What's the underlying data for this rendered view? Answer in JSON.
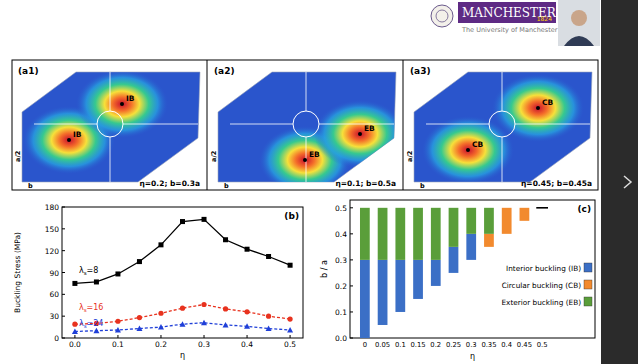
{
  "header": {
    "logo": "MANCHESTER",
    "logo_year": "1824",
    "subtitle": "The University of Manchester"
  },
  "panels": [
    {
      "label": "(a1)",
      "markers": [
        "IB",
        "IB"
      ],
      "caption": "η=0.2; b=0.3a",
      "dims": [
        "a/2",
        "b"
      ]
    },
    {
      "label": "(a2)",
      "markers": [
        "EB",
        "EB"
      ],
      "caption": "η=0.1; b=0.5a",
      "dims": [
        "a/2",
        "b"
      ]
    },
    {
      "label": "(a3)",
      "markers": [
        "CB",
        "CB"
      ],
      "caption": "η=0.45; b=0.45a",
      "dims": [
        "a/2",
        "b"
      ]
    }
  ],
  "chart_data": [
    {
      "type": "line",
      "title": "(b)",
      "y_label": "Buckling Stress (MPa)",
      "x_label": "η",
      "x": [
        0,
        0.05,
        0.1,
        0.15,
        0.2,
        0.25,
        0.3,
        0.35,
        0.4,
        0.45,
        0.5
      ],
      "xlim": [
        -0.03,
        0.53
      ],
      "xticks": [
        {
          "value": 0,
          "label": "0.0"
        },
        0.1,
        0.2,
        0.3,
        0.4,
        0.5
      ],
      "ylim": [
        0,
        180
      ],
      "yticks": [
        0,
        30,
        60,
        90,
        120,
        150,
        180
      ],
      "series": [
        {
          "name": "λs=8",
          "color": "#000000",
          "marker": "square",
          "line_style": "solid",
          "values": [
            75,
            77,
            88,
            105,
            128,
            160,
            163,
            135,
            122,
            112,
            100
          ]
        },
        {
          "name": "λs=16",
          "color": "#e8321e",
          "marker": "circle",
          "line_style": "dashed",
          "values": [
            19,
            20,
            23,
            28,
            34,
            41,
            46,
            40,
            36,
            30,
            26
          ]
        },
        {
          "name": "λs=24",
          "color": "#1f3fd8",
          "marker": "triangle",
          "line_style": "dashed",
          "values": [
            9,
            10,
            11,
            13,
            15,
            19,
            21,
            18,
            16,
            13,
            11
          ]
        }
      ]
    },
    {
      "type": "bar",
      "stacked": true,
      "title": "(c)",
      "x_label": "η",
      "y_label": "b / a",
      "categories": [
        "0",
        "0.05",
        "0.1",
        "0.15",
        "0.2",
        "0.25",
        "0.3",
        "0.35",
        "0.4",
        "0.45",
        "0.5"
      ],
      "starts": [
        0,
        0.05,
        0.1,
        0.15,
        0.2,
        0.25,
        0.3,
        0.35,
        0.4,
        0.45,
        0.5
      ],
      "ylim": [
        0,
        0.53
      ],
      "yticks": [
        {
          "value": 0,
          "label": "0.0"
        },
        0.1,
        0.2,
        0.3,
        0.4,
        0.5
      ],
      "legend": "right",
      "series": [
        {
          "name": "Interior buckling (IB)",
          "color": "#3b6fc6",
          "values": [
            0.3,
            0.25,
            0.2,
            0.15,
            0.1,
            0.1,
            0.1,
            0,
            0,
            0,
            0
          ]
        },
        {
          "name": "Circular buckling (CB)",
          "color": "#f28a2e",
          "values": [
            0,
            0,
            0,
            0,
            0,
            0,
            0,
            0.05,
            0.1,
            0.05,
            0
          ]
        },
        {
          "name": "Exterior buckling (EB)",
          "color": "#5a9e3a",
          "values": [
            0.2,
            0.2,
            0.2,
            0.2,
            0.2,
            0.15,
            0.1,
            0.1,
            0,
            0,
            0
          ]
        }
      ]
    }
  ]
}
